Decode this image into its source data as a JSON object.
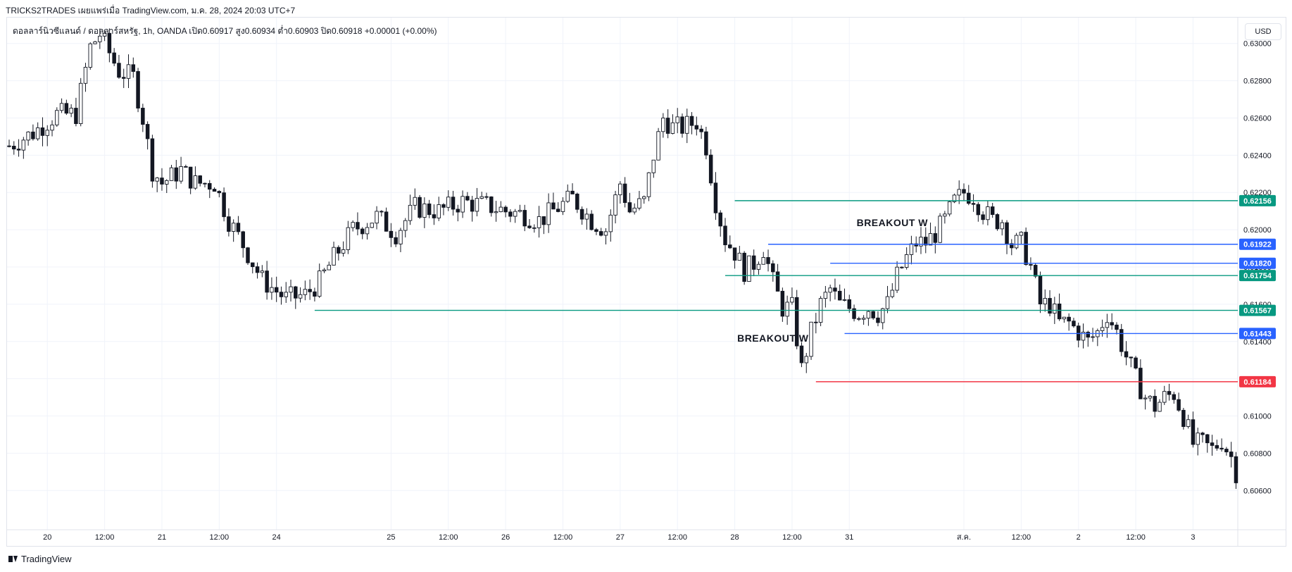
{
  "header": {
    "publisher": "TRICKS2TRADES เผยแพร่เมื่อ TradingView.com, ม.ค. 28, 2024 20:03 UTC+7"
  },
  "legend": {
    "text": "ดอลลาร์นิวซีแลนด์ / ดอลลาร์สหรัฐ, 1h, OANDA  เปิด0.60917  สูง0.60934  ต่ำ0.60903  ปิด0.60918  +0.00001 (+0.00%)"
  },
  "currency_button": "USD",
  "footer": {
    "brand": "TradingView"
  },
  "colors": {
    "candle": "#131722",
    "green_line": "#089981",
    "blue_line": "#2962ff",
    "red_line": "#f23645",
    "grid": "#f0f3fa"
  },
  "chart_data": {
    "type": "candlestick",
    "ylim": [
      0.6048,
      0.6312
    ],
    "y_ticks": [
      "0.63000",
      "0.62800",
      "0.62600",
      "0.62400",
      "0.62200",
      "0.62000",
      "0.61800",
      "0.61600",
      "0.61400",
      "0.61200",
      "0.61000",
      "0.60800",
      "0.60600"
    ],
    "x_ticks": [
      "20",
      "12:00",
      "21",
      "12:00",
      "24",
      "25",
      "12:00",
      "26",
      "12:00",
      "27",
      "12:00",
      "28",
      "12:00",
      "31",
      "ส.ค.",
      "12:00",
      "2",
      "12:00",
      "3"
    ],
    "x_tick_bar_index": [
      8,
      20,
      32,
      44,
      56,
      80,
      92,
      104,
      116,
      128,
      140,
      152,
      164,
      176,
      200,
      212,
      224,
      236,
      248
    ],
    "num_bars": 258,
    "price_path": [
      [
        0,
        0.6245
      ],
      [
        5,
        0.6252
      ],
      [
        10,
        0.6262
      ],
      [
        14,
        0.6262
      ],
      [
        17,
        0.6298
      ],
      [
        19,
        0.6305
      ],
      [
        20,
        0.63
      ],
      [
        23,
        0.6285
      ],
      [
        26,
        0.6282
      ],
      [
        28,
        0.626
      ],
      [
        30,
        0.6232
      ],
      [
        32,
        0.6225
      ],
      [
        36,
        0.6232
      ],
      [
        39,
        0.6225
      ],
      [
        43,
        0.6225
      ],
      [
        46,
        0.6205
      ],
      [
        49,
        0.6192
      ],
      [
        53,
        0.6173
      ],
      [
        58,
        0.6163
      ],
      [
        62,
        0.6165
      ],
      [
        65,
        0.6172
      ],
      [
        68,
        0.6185
      ],
      [
        72,
        0.62
      ],
      [
        77,
        0.6207
      ],
      [
        81,
        0.6198
      ],
      [
        85,
        0.6212
      ],
      [
        90,
        0.621
      ],
      [
        95,
        0.6215
      ],
      [
        100,
        0.6213
      ],
      [
        104,
        0.621
      ],
      [
        108,
        0.6208
      ],
      [
        111,
        0.6205
      ],
      [
        115,
        0.6212
      ],
      [
        118,
        0.6217
      ],
      [
        122,
        0.6205
      ],
      [
        125,
        0.62
      ],
      [
        128,
        0.6225
      ],
      [
        130,
        0.621
      ],
      [
        133,
        0.6215
      ],
      [
        135,
        0.624
      ],
      [
        137,
        0.626
      ],
      [
        139,
        0.6255
      ],
      [
        141,
        0.6255
      ],
      [
        144,
        0.6258
      ],
      [
        146,
        0.6245
      ],
      [
        148,
        0.6215
      ],
      [
        150,
        0.6195
      ],
      [
        152,
        0.6188
      ],
      [
        154,
        0.6178
      ],
      [
        156,
        0.6182
      ],
      [
        158,
        0.619
      ],
      [
        160,
        0.6172
      ],
      [
        162,
        0.6158
      ],
      [
        164,
        0.6158
      ],
      [
        166,
        0.6125
      ],
      [
        168,
        0.6145
      ],
      [
        170,
        0.616
      ],
      [
        172,
        0.6168
      ],
      [
        174,
        0.616
      ],
      [
        176,
        0.6158
      ],
      [
        178,
        0.6155
      ],
      [
        180,
        0.6158
      ],
      [
        182,
        0.6155
      ],
      [
        184,
        0.616
      ],
      [
        186,
        0.6175
      ],
      [
        188,
        0.6185
      ],
      [
        190,
        0.6193
      ],
      [
        192,
        0.6193
      ],
      [
        194,
        0.6198
      ],
      [
        196,
        0.6205
      ],
      [
        198,
        0.6215
      ],
      [
        200,
        0.622
      ],
      [
        202,
        0.6218
      ],
      [
        204,
        0.621
      ],
      [
        206,
        0.6205
      ],
      [
        208,
        0.6205
      ],
      [
        210,
        0.6192
      ],
      [
        212,
        0.6193
      ],
      [
        214,
        0.618
      ],
      [
        216,
        0.616
      ],
      [
        218,
        0.616
      ],
      [
        220,
        0.615
      ],
      [
        222,
        0.615
      ],
      [
        224,
        0.6145
      ],
      [
        226,
        0.614
      ],
      [
        228,
        0.6145
      ],
      [
        230,
        0.6155
      ],
      [
        232,
        0.6145
      ],
      [
        234,
        0.6132
      ],
      [
        236,
        0.612
      ],
      [
        238,
        0.611
      ],
      [
        240,
        0.6105
      ],
      [
        242,
        0.611
      ],
      [
        244,
        0.6112
      ],
      [
        246,
        0.61
      ],
      [
        248,
        0.6085
      ],
      [
        250,
        0.6085
      ],
      [
        252,
        0.6082
      ],
      [
        254,
        0.6087
      ],
      [
        256,
        0.6078
      ],
      [
        257,
        0.607
      ]
    ],
    "levels": [
      {
        "value": 0.62156,
        "label": "0.62156",
        "color": "green",
        "from_bar": 152
      },
      {
        "value": 0.61922,
        "label": "0.61922",
        "color": "blue",
        "from_bar": 159
      },
      {
        "value": 0.6182,
        "label": "0.61820",
        "color": "blue",
        "from_bar": 172
      },
      {
        "value": 0.61754,
        "label": "0.61754",
        "color": "green",
        "from_bar": 150
      },
      {
        "value": 0.61567,
        "label": "0.61567",
        "color": "green",
        "from_bar": 64
      },
      {
        "value": 0.61443,
        "label": "0.61443",
        "color": "blue",
        "from_bar": 175
      },
      {
        "value": 0.61184,
        "label": "0.61184",
        "color": "red",
        "from_bar": 169
      }
    ],
    "annotations": [
      {
        "text": "BREAKOUT W",
        "bar": 185,
        "price": 0.6202
      },
      {
        "text": "BREAKOUT W",
        "bar": 160,
        "price": 0.614
      }
    ]
  }
}
